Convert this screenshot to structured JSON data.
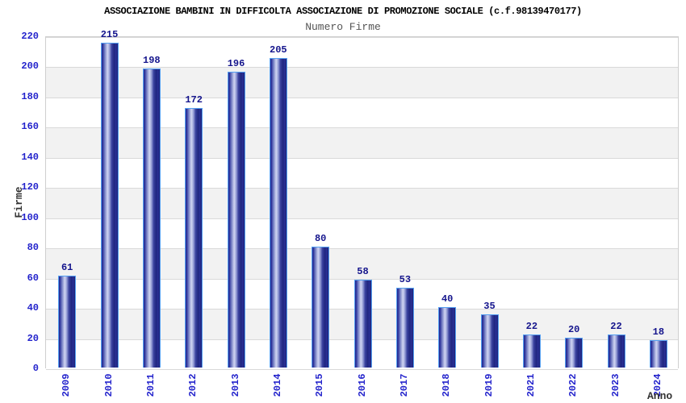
{
  "title": "ASSOCIAZIONE BAMBINI IN DIFFICOLTA ASSOCIAZIONE DI PROMOZIONE SOCIALE (c.f.98139470177)",
  "chart_data": {
    "type": "bar",
    "title": "Numero Firme",
    "categories": [
      "2009",
      "2010",
      "2011",
      "2012",
      "2013",
      "2014",
      "2015",
      "2016",
      "2017",
      "2018",
      "2019",
      "2021",
      "2022",
      "2023",
      "2024"
    ],
    "values": [
      61,
      215,
      198,
      172,
      196,
      205,
      80,
      58,
      53,
      40,
      35,
      22,
      20,
      22,
      18
    ],
    "xlabel": "Anno",
    "ylabel": "Firme",
    "ylim": [
      0,
      220
    ],
    "y_ticks": [
      0,
      20,
      40,
      60,
      80,
      100,
      120,
      140,
      160,
      180,
      200,
      220
    ],
    "grid": "horizontal",
    "legend": "none",
    "band_fill": "alternating horizontal bands every 20 units",
    "colors": {
      "bar_border": "#55a0f2",
      "bar_body_dark": "#232a92",
      "bar_body_highlight": "#d0d5f2",
      "value_label": "#14148c",
      "tick_label": "#2323cc",
      "axis_label": "#333333",
      "grid_line": "#d9d9d9",
      "band_gray": "#f2f2f2",
      "band_white": "#ffffff",
      "title": "#000000",
      "subtitle": "#555555"
    }
  }
}
